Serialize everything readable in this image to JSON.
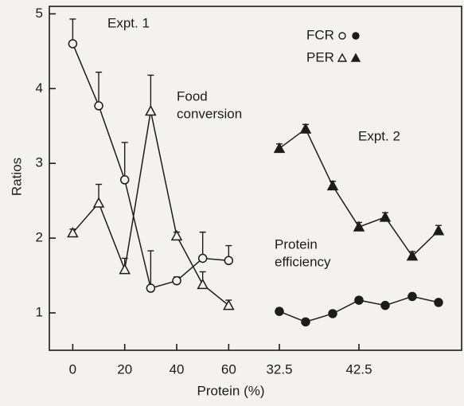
{
  "chart_data": [
    {
      "type": "line",
      "title": "Expt. 1",
      "ylabel": "Ratios",
      "xlabel": "Protein (%)",
      "ylim": [
        0.5,
        5.1
      ],
      "yticks": [
        1,
        2,
        3,
        4,
        5
      ],
      "xlim": [
        -9,
        70
      ],
      "xticks": [
        0,
        20,
        40,
        60
      ],
      "annotations": [
        "Food",
        "conversion"
      ],
      "series": [
        {
          "name": "FCR",
          "marker": "circle",
          "filled": false,
          "color": "#1c1c1c",
          "x": [
            0,
            10,
            20,
            30,
            40,
            50,
            60
          ],
          "values": [
            4.6,
            3.77,
            2.78,
            1.33,
            1.43,
            1.73,
            1.7
          ],
          "errors": [
            0.33,
            0.45,
            0.5,
            0.5,
            0.05,
            0.35,
            0.2
          ]
        },
        {
          "name": "PER",
          "marker": "triangle",
          "filled": false,
          "color": "#1c1c1c",
          "x": [
            0,
            10,
            20,
            30,
            40,
            50,
            60
          ],
          "values": [
            2.07,
            2.47,
            1.58,
            3.7,
            2.03,
            1.38,
            1.1
          ],
          "errors": [
            0.05,
            0.25,
            0.15,
            0.48,
            0.05,
            0.17,
            0.07
          ]
        }
      ]
    },
    {
      "type": "line",
      "title": "Expt. 2",
      "xlim": [
        29.4,
        55.4
      ],
      "xticks": [
        32.5,
        42.5
      ],
      "annotations": [
        "Protein",
        "efficiency"
      ],
      "series": [
        {
          "marker": "circle",
          "filled": true,
          "color": "#1c1c1c",
          "x": [
            32.5,
            35.8,
            39.2,
            42.5,
            45.8,
            49.2,
            52.5
          ],
          "values": [
            1.02,
            0.88,
            0.99,
            1.17,
            1.1,
            1.22,
            1.14
          ],
          "errors": [
            0.04,
            0.03,
            0.04,
            0.04,
            0.04,
            0.04,
            0.04
          ]
        },
        {
          "marker": "triangle",
          "filled": true,
          "color": "#1c1c1c",
          "x": [
            32.5,
            35.8,
            39.2,
            42.5,
            45.8,
            49.2,
            52.5
          ],
          "values": [
            3.2,
            3.46,
            2.7,
            2.15,
            2.28,
            1.76,
            2.1
          ],
          "errors": [
            0.06,
            0.06,
            0.06,
            0.06,
            0.06,
            0.06,
            0.07
          ]
        }
      ]
    }
  ]
}
